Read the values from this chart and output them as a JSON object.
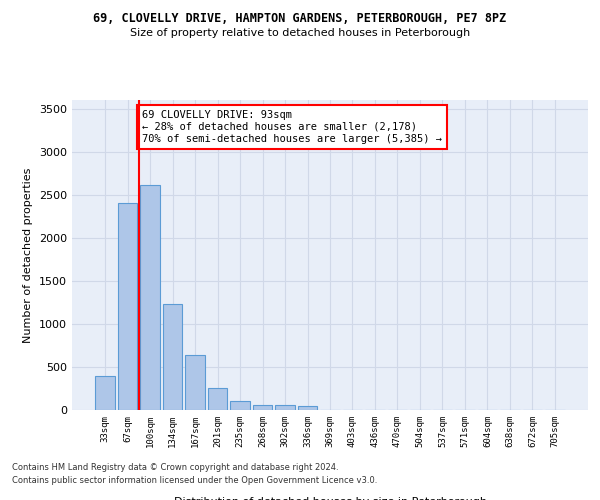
{
  "title_line1": "69, CLOVELLY DRIVE, HAMPTON GARDENS, PETERBOROUGH, PE7 8PZ",
  "title_line2": "Size of property relative to detached houses in Peterborough",
  "xlabel": "Distribution of detached houses by size in Peterborough",
  "ylabel": "Number of detached properties",
  "footnote1": "Contains HM Land Registry data © Crown copyright and database right 2024.",
  "footnote2": "Contains public sector information licensed under the Open Government Licence v3.0.",
  "bar_labels": [
    "33sqm",
    "67sqm",
    "100sqm",
    "134sqm",
    "167sqm",
    "201sqm",
    "235sqm",
    "268sqm",
    "302sqm",
    "336sqm",
    "369sqm",
    "403sqm",
    "436sqm",
    "470sqm",
    "504sqm",
    "537sqm",
    "571sqm",
    "604sqm",
    "638sqm",
    "672sqm",
    "705sqm"
  ],
  "bar_values": [
    390,
    2400,
    2610,
    1230,
    640,
    255,
    100,
    60,
    60,
    45,
    0,
    0,
    0,
    0,
    0,
    0,
    0,
    0,
    0,
    0,
    0
  ],
  "bar_color": "#aec6e8",
  "bar_edge_color": "#5b9bd5",
  "grid_color": "#d0d8e8",
  "background_color": "#e8eef8",
  "vline_x": 1.5,
  "vline_color": "red",
  "annotation_text": "69 CLOVELLY DRIVE: 93sqm\n← 28% of detached houses are smaller (2,178)\n70% of semi-detached houses are larger (5,385) →",
  "annotation_box_color": "white",
  "annotation_box_edge": "red",
  "ylim": [
    0,
    3600
  ],
  "yticks": [
    0,
    500,
    1000,
    1500,
    2000,
    2500,
    3000,
    3500
  ]
}
